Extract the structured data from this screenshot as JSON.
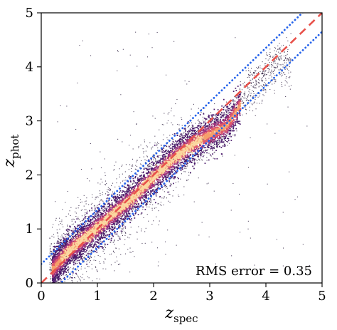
{
  "chart_data": {
    "type": "scatter",
    "title": "",
    "xlabel": {
      "base": "z",
      "sub": "spec"
    },
    "ylabel": {
      "base": "z",
      "sub": "phot"
    },
    "xlim": [
      0,
      5
    ],
    "ylim": [
      0,
      5
    ],
    "xticks": [
      "0",
      "1",
      "2",
      "3",
      "4",
      "5"
    ],
    "yticks": [
      "0",
      "1",
      "2",
      "3",
      "4",
      "5"
    ],
    "grid": false,
    "annotation": "RMS error = 0.35",
    "reference_lines": [
      {
        "kind": "one-to-one",
        "slope": 1.0,
        "intercept": 0.0,
        "style": "dashed",
        "color": "#e8514a"
      },
      {
        "kind": "upper-bound",
        "slope": 1.0,
        "intercept": 0.35,
        "style": "dotted",
        "color": "#2563eb"
      },
      {
        "kind": "lower-bound",
        "slope": 1.0,
        "intercept": -0.35,
        "style": "dotted",
        "color": "#2563eb"
      }
    ],
    "density_ridge": [
      {
        "x": 0.2,
        "y": 0.25
      },
      {
        "x": 0.5,
        "y": 0.6
      },
      {
        "x": 0.8,
        "y": 0.85
      },
      {
        "x": 1.2,
        "y": 1.2
      },
      {
        "x": 1.6,
        "y": 1.55
      },
      {
        "x": 2.0,
        "y": 1.95
      },
      {
        "x": 2.3,
        "y": 2.25
      },
      {
        "x": 2.6,
        "y": 2.5
      },
      {
        "x": 3.0,
        "y": 2.75
      },
      {
        "x": 3.3,
        "y": 2.9
      },
      {
        "x": 3.7,
        "y": 3.55
      },
      {
        "x": 4.2,
        "y": 4.1
      }
    ],
    "colormap": [
      "#1a0a2e",
      "#4a1a6b",
      "#9c2f7a",
      "#e0586a",
      "#f5a06b",
      "#fbd7a0"
    ]
  }
}
